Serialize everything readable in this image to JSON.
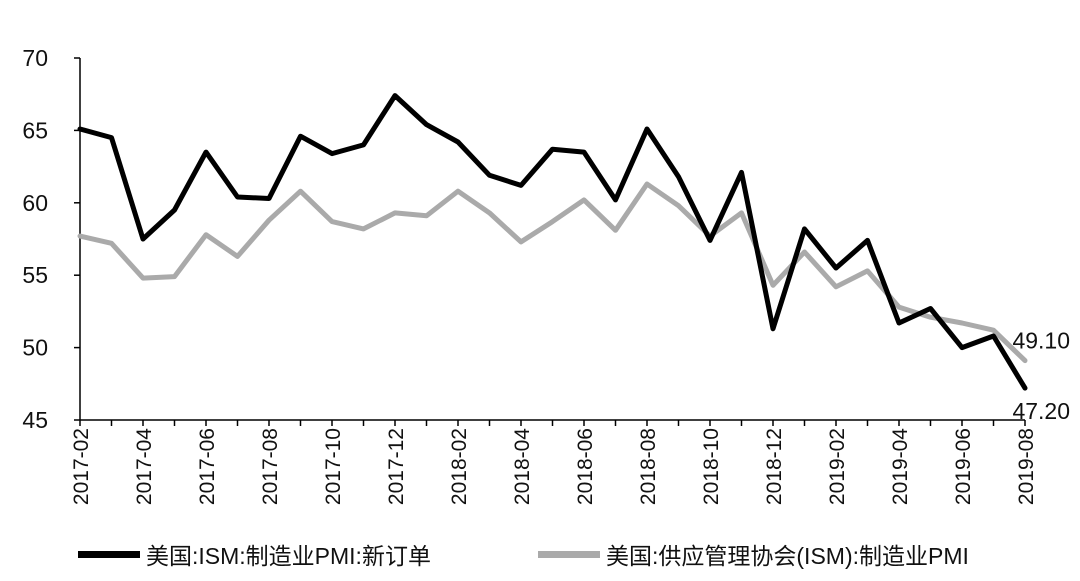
{
  "chart_data": {
    "type": "line",
    "x": [
      "2017-02",
      "2017-03",
      "2017-04",
      "2017-05",
      "2017-06",
      "2017-07",
      "2017-08",
      "2017-09",
      "2017-10",
      "2017-11",
      "2017-12",
      "2018-01",
      "2018-02",
      "2018-03",
      "2018-04",
      "2018-05",
      "2018-06",
      "2018-07",
      "2018-08",
      "2018-09",
      "2018-10",
      "2018-11",
      "2018-12",
      "2019-01",
      "2019-02",
      "2019-03",
      "2019-04",
      "2019-05",
      "2019-06",
      "2019-07",
      "2019-08"
    ],
    "x_tick_labels": [
      "2017-02",
      "2017-04",
      "2017-06",
      "2017-08",
      "2017-10",
      "2017-12",
      "2018-02",
      "2018-04",
      "2018-06",
      "2018-08",
      "2018-10",
      "2018-12",
      "2019-02",
      "2019-04",
      "2019-06",
      "2019-08"
    ],
    "ylim": [
      45,
      70
    ],
    "y_ticks": [
      45,
      50,
      55,
      60,
      65,
      70
    ],
    "grid": false,
    "legend_position": "bottom",
    "series": [
      {
        "name": "美国:ISM:制造业PMI:新订单",
        "color": "#000000",
        "values": [
          65.1,
          64.5,
          57.5,
          59.5,
          63.5,
          60.4,
          60.3,
          64.6,
          63.4,
          64.0,
          67.4,
          65.4,
          64.2,
          61.9,
          61.2,
          63.7,
          63.5,
          60.2,
          65.1,
          61.8,
          57.4,
          62.1,
          51.3,
          58.2,
          55.5,
          57.4,
          51.7,
          52.7,
          50.0,
          50.8,
          47.2
        ],
        "end_label": "47.20"
      },
      {
        "name": "美国:供应管理协会(ISM):制造业PMI",
        "color": "#aaaaaa",
        "values": [
          57.7,
          57.2,
          54.8,
          54.9,
          57.8,
          56.3,
          58.8,
          60.8,
          58.7,
          58.2,
          59.3,
          59.1,
          60.8,
          59.3,
          57.3,
          58.7,
          60.2,
          58.1,
          61.3,
          59.8,
          57.7,
          59.3,
          54.3,
          56.6,
          54.2,
          55.3,
          52.8,
          52.1,
          51.7,
          51.2,
          49.1
        ],
        "end_label": "49.10"
      }
    ]
  }
}
